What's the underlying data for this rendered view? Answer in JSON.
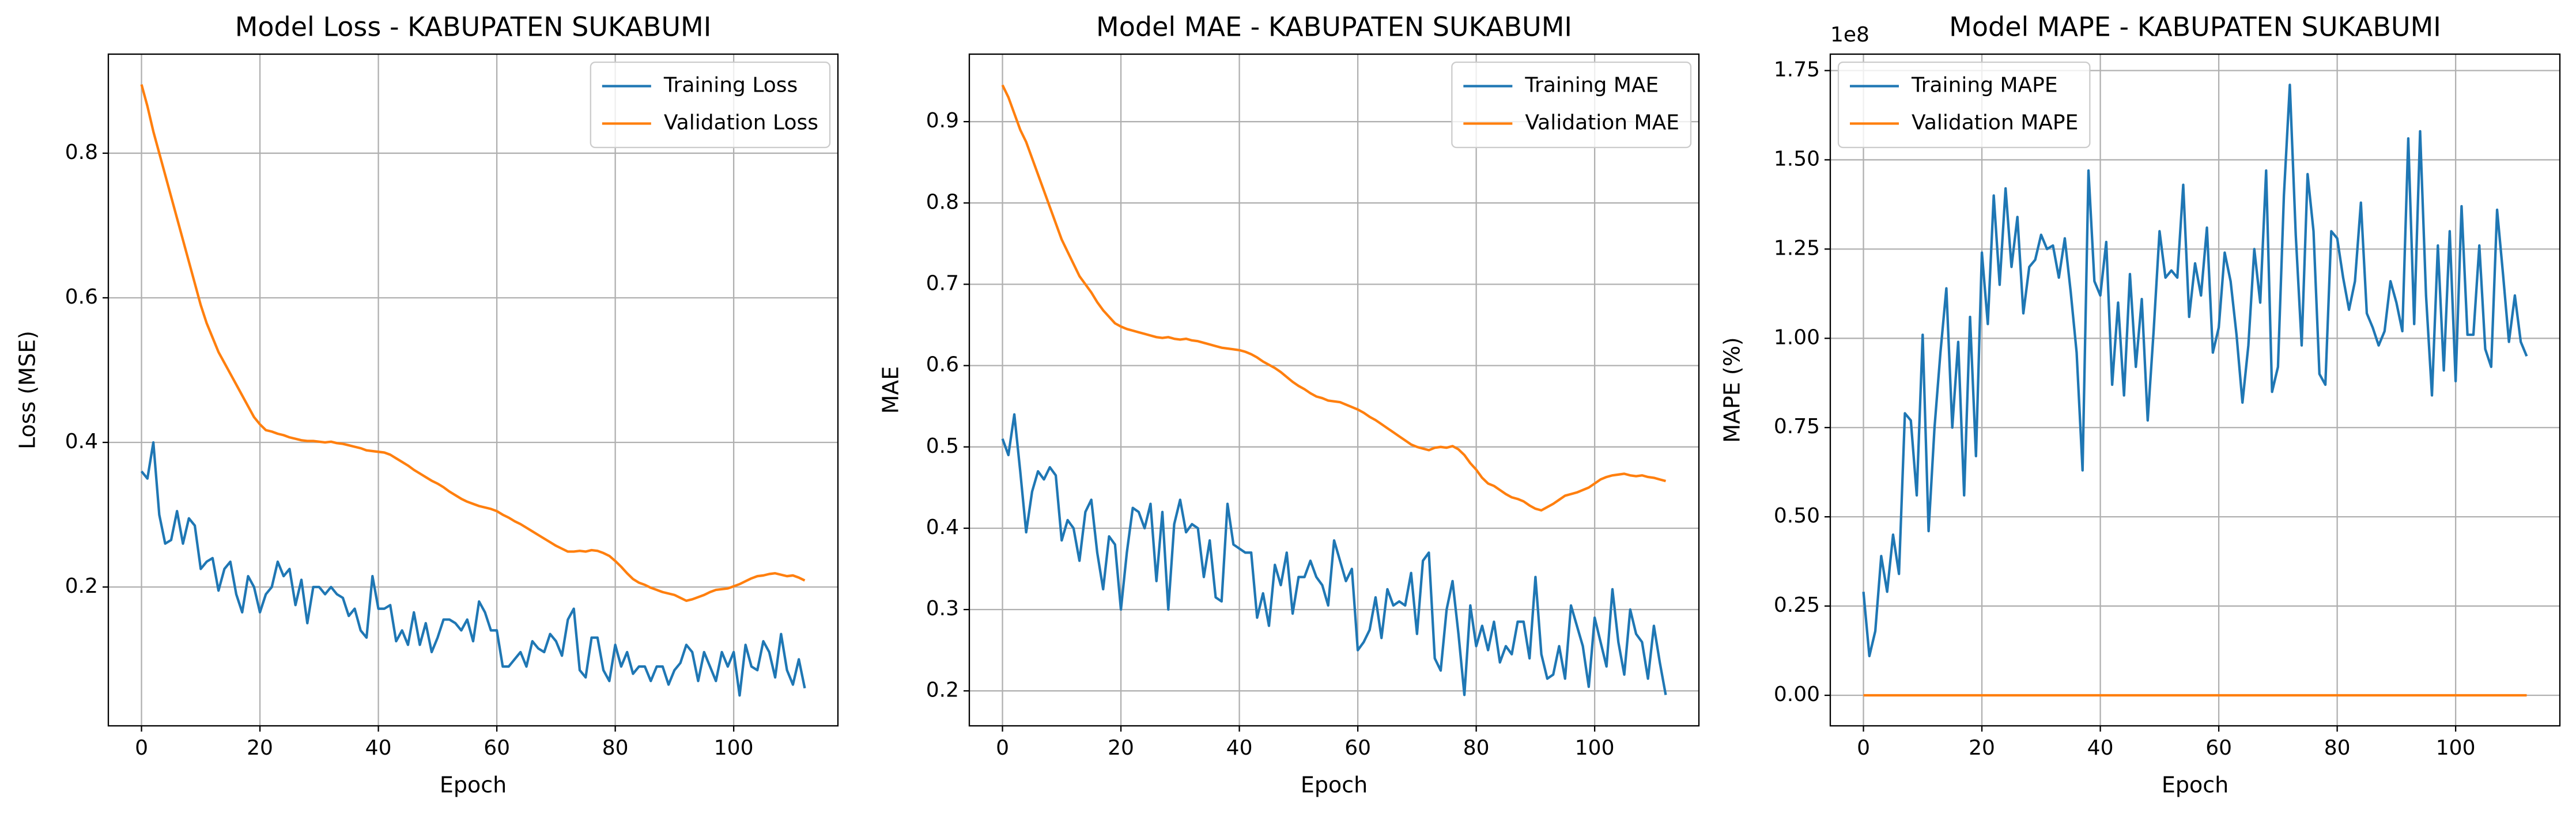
{
  "chart_data": [
    {
      "type": "line",
      "title": "Model Loss - KABUPATEN SUKABUMI",
      "xlabel": "Epoch",
      "ylabel": "Loss (MSE)",
      "x": [
        0,
        1,
        2,
        3,
        4,
        5,
        6,
        7,
        8,
        9,
        10,
        11,
        12,
        13,
        14,
        15,
        16,
        17,
        18,
        19,
        20,
        21,
        22,
        23,
        24,
        25,
        26,
        27,
        28,
        29,
        30,
        31,
        32,
        33,
        34,
        35,
        36,
        37,
        38,
        39,
        40,
        41,
        42,
        43,
        44,
        45,
        46,
        47,
        48,
        49,
        50,
        51,
        52,
        53,
        54,
        55,
        56,
        57,
        58,
        59,
        60,
        61,
        62,
        63,
        64,
        65,
        66,
        67,
        68,
        69,
        70,
        71,
        72,
        73,
        74,
        75,
        76,
        77,
        78,
        79,
        80,
        81,
        82,
        83,
        84,
        85,
        86,
        87,
        88,
        89,
        90,
        91,
        92,
        93,
        94,
        95,
        96,
        97,
        98,
        99,
        100,
        101,
        102,
        103,
        104,
        105,
        106,
        107,
        108,
        109,
        110,
        111,
        112
      ],
      "series": [
        {
          "name": "Training Loss",
          "color": "#1f77b4",
          "values": [
            0.36,
            0.35,
            0.4,
            0.3,
            0.26,
            0.265,
            0.305,
            0.26,
            0.295,
            0.285,
            0.225,
            0.235,
            0.24,
            0.195,
            0.225,
            0.235,
            0.19,
            0.165,
            0.215,
            0.2,
            0.165,
            0.19,
            0.2,
            0.235,
            0.215,
            0.225,
            0.175,
            0.21,
            0.15,
            0.2,
            0.2,
            0.19,
            0.2,
            0.19,
            0.185,
            0.16,
            0.17,
            0.14,
            0.13,
            0.215,
            0.17,
            0.17,
            0.175,
            0.125,
            0.14,
            0.12,
            0.165,
            0.12,
            0.15,
            0.11,
            0.13,
            0.155,
            0.155,
            0.15,
            0.14,
            0.155,
            0.125,
            0.18,
            0.165,
            0.14,
            0.14,
            0.09,
            0.09,
            0.1,
            0.11,
            0.09,
            0.125,
            0.115,
            0.11,
            0.135,
            0.125,
            0.105,
            0.155,
            0.17,
            0.085,
            0.075,
            0.13,
            0.13,
            0.085,
            0.07,
            0.12,
            0.09,
            0.11,
            0.08,
            0.09,
            0.09,
            0.07,
            0.09,
            0.09,
            0.065,
            0.085,
            0.095,
            0.12,
            0.11,
            0.07,
            0.11,
            0.09,
            0.07,
            0.11,
            0.09,
            0.11,
            0.05,
            0.12,
            0.09,
            0.085,
            0.125,
            0.11,
            0.075,
            0.135,
            0.085,
            0.065,
            0.1,
            0.06
          ]
        },
        {
          "name": "Validation Loss",
          "color": "#ff7f0e",
          "values": [
            0.895,
            0.865,
            0.83,
            0.8,
            0.77,
            0.74,
            0.71,
            0.68,
            0.65,
            0.62,
            0.59,
            0.565,
            0.545,
            0.525,
            0.51,
            0.495,
            0.48,
            0.465,
            0.45,
            0.435,
            0.425,
            0.417,
            0.415,
            0.412,
            0.41,
            0.407,
            0.405,
            0.403,
            0.402,
            0.402,
            0.401,
            0.4,
            0.401,
            0.399,
            0.398,
            0.396,
            0.394,
            0.392,
            0.389,
            0.388,
            0.387,
            0.386,
            0.383,
            0.378,
            0.373,
            0.368,
            0.362,
            0.357,
            0.352,
            0.347,
            0.343,
            0.338,
            0.332,
            0.327,
            0.322,
            0.318,
            0.315,
            0.312,
            0.31,
            0.308,
            0.305,
            0.3,
            0.296,
            0.291,
            0.287,
            0.282,
            0.277,
            0.272,
            0.267,
            0.262,
            0.257,
            0.253,
            0.249,
            0.249,
            0.25,
            0.249,
            0.251,
            0.25,
            0.247,
            0.243,
            0.236,
            0.228,
            0.219,
            0.211,
            0.206,
            0.203,
            0.199,
            0.196,
            0.193,
            0.191,
            0.189,
            0.185,
            0.181,
            0.183,
            0.186,
            0.189,
            0.193,
            0.196,
            0.197,
            0.198,
            0.201,
            0.204,
            0.208,
            0.212,
            0.215,
            0.216,
            0.218,
            0.219,
            0.217,
            0.215,
            0.216,
            0.213,
            0.209
          ]
        }
      ],
      "xlim": [
        -5.6,
        117.6
      ],
      "xticks": [
        0,
        20,
        40,
        60,
        80,
        100
      ],
      "ylim": [
        0.008,
        0.937
      ],
      "yticks": [
        0.2,
        0.4,
        0.6,
        0.8
      ],
      "grid": true,
      "legend": "upper right"
    },
    {
      "type": "line",
      "title": "Model MAE - KABUPATEN SUKABUMI",
      "xlabel": "Epoch",
      "ylabel": "MAE",
      "x": [
        0,
        1,
        2,
        3,
        4,
        5,
        6,
        7,
        8,
        9,
        10,
        11,
        12,
        13,
        14,
        15,
        16,
        17,
        18,
        19,
        20,
        21,
        22,
        23,
        24,
        25,
        26,
        27,
        28,
        29,
        30,
        31,
        32,
        33,
        34,
        35,
        36,
        37,
        38,
        39,
        40,
        41,
        42,
        43,
        44,
        45,
        46,
        47,
        48,
        49,
        50,
        51,
        52,
        53,
        54,
        55,
        56,
        57,
        58,
        59,
        60,
        61,
        62,
        63,
        64,
        65,
        66,
        67,
        68,
        69,
        70,
        71,
        72,
        73,
        74,
        75,
        76,
        77,
        78,
        79,
        80,
        81,
        82,
        83,
        84,
        85,
        86,
        87,
        88,
        89,
        90,
        91,
        92,
        93,
        94,
        95,
        96,
        97,
        98,
        99,
        100,
        101,
        102,
        103,
        104,
        105,
        106,
        107,
        108,
        109,
        110,
        111,
        112
      ],
      "series": [
        {
          "name": "Training MAE",
          "color": "#1f77b4",
          "values": [
            0.51,
            0.49,
            0.54,
            0.47,
            0.395,
            0.445,
            0.47,
            0.46,
            0.475,
            0.465,
            0.385,
            0.41,
            0.4,
            0.36,
            0.42,
            0.435,
            0.37,
            0.325,
            0.39,
            0.38,
            0.3,
            0.37,
            0.425,
            0.42,
            0.4,
            0.43,
            0.335,
            0.42,
            0.3,
            0.405,
            0.435,
            0.395,
            0.405,
            0.4,
            0.34,
            0.385,
            0.315,
            0.31,
            0.43,
            0.38,
            0.375,
            0.37,
            0.37,
            0.29,
            0.32,
            0.28,
            0.355,
            0.33,
            0.37,
            0.295,
            0.34,
            0.34,
            0.36,
            0.34,
            0.33,
            0.305,
            0.385,
            0.36,
            0.335,
            0.35,
            0.25,
            0.26,
            0.275,
            0.315,
            0.265,
            0.325,
            0.305,
            0.31,
            0.305,
            0.345,
            0.27,
            0.36,
            0.37,
            0.24,
            0.225,
            0.3,
            0.335,
            0.27,
            0.195,
            0.305,
            0.255,
            0.28,
            0.25,
            0.285,
            0.235,
            0.255,
            0.245,
            0.285,
            0.285,
            0.24,
            0.34,
            0.245,
            0.215,
            0.22,
            0.255,
            0.215,
            0.305,
            0.28,
            0.255,
            0.205,
            0.29,
            0.26,
            0.23,
            0.325,
            0.26,
            0.22,
            0.3,
            0.27,
            0.26,
            0.215,
            0.28,
            0.235,
            0.195
          ]
        },
        {
          "name": "Validation MAE",
          "color": "#ff7f0e",
          "values": [
            0.945,
            0.93,
            0.91,
            0.89,
            0.875,
            0.855,
            0.835,
            0.815,
            0.795,
            0.775,
            0.755,
            0.74,
            0.725,
            0.71,
            0.7,
            0.69,
            0.678,
            0.668,
            0.66,
            0.652,
            0.648,
            0.645,
            0.643,
            0.641,
            0.639,
            0.637,
            0.635,
            0.634,
            0.635,
            0.633,
            0.632,
            0.633,
            0.631,
            0.63,
            0.628,
            0.626,
            0.624,
            0.622,
            0.621,
            0.62,
            0.619,
            0.617,
            0.614,
            0.61,
            0.605,
            0.601,
            0.597,
            0.592,
            0.586,
            0.58,
            0.575,
            0.571,
            0.566,
            0.562,
            0.56,
            0.557,
            0.556,
            0.555,
            0.552,
            0.549,
            0.546,
            0.542,
            0.537,
            0.533,
            0.528,
            0.523,
            0.518,
            0.513,
            0.508,
            0.503,
            0.5,
            0.498,
            0.496,
            0.499,
            0.5,
            0.499,
            0.501,
            0.497,
            0.49,
            0.48,
            0.472,
            0.462,
            0.455,
            0.452,
            0.447,
            0.442,
            0.438,
            0.436,
            0.433,
            0.428,
            0.424,
            0.422,
            0.426,
            0.43,
            0.435,
            0.44,
            0.442,
            0.444,
            0.447,
            0.45,
            0.455,
            0.46,
            0.463,
            0.465,
            0.466,
            0.467,
            0.465,
            0.464,
            0.465,
            0.463,
            0.462,
            0.46,
            0.458
          ]
        }
      ],
      "xlim": [
        -5.6,
        117.6
      ],
      "xticks": [
        0,
        20,
        40,
        60,
        80,
        100
      ],
      "ylim": [
        0.157,
        0.983
      ],
      "yticks": [
        0.2,
        0.3,
        0.4,
        0.5,
        0.6,
        0.7,
        0.8,
        0.9
      ],
      "grid": true,
      "legend": "upper right"
    },
    {
      "type": "line",
      "title": "Model MAPE - KABUPATEN SUKABUMI",
      "xlabel": "Epoch",
      "ylabel": "MAPE (%)",
      "y_offset_label": "1e8",
      "x": [
        0,
        1,
        2,
        3,
        4,
        5,
        6,
        7,
        8,
        9,
        10,
        11,
        12,
        13,
        14,
        15,
        16,
        17,
        18,
        19,
        20,
        21,
        22,
        23,
        24,
        25,
        26,
        27,
        28,
        29,
        30,
        31,
        32,
        33,
        34,
        35,
        36,
        37,
        38,
        39,
        40,
        41,
        42,
        43,
        44,
        45,
        46,
        47,
        48,
        49,
        50,
        51,
        52,
        53,
        54,
        55,
        56,
        57,
        58,
        59,
        60,
        61,
        62,
        63,
        64,
        65,
        66,
        67,
        68,
        69,
        70,
        71,
        72,
        73,
        74,
        75,
        76,
        77,
        78,
        79,
        80,
        81,
        82,
        83,
        84,
        85,
        86,
        87,
        88,
        89,
        90,
        91,
        92,
        93,
        94,
        95,
        96,
        97,
        98,
        99,
        100,
        101,
        102,
        103,
        104,
        105,
        106,
        107,
        108,
        109,
        110,
        111,
        112
      ],
      "series": [
        {
          "name": "Training MAPE",
          "color": "#1f77b4",
          "values": [
            0.29,
            0.11,
            0.18,
            0.39,
            0.29,
            0.45,
            0.34,
            0.79,
            0.77,
            0.56,
            1.01,
            0.46,
            0.75,
            0.96,
            1.14,
            0.75,
            0.99,
            0.56,
            1.06,
            0.67,
            1.24,
            1.04,
            1.4,
            1.15,
            1.42,
            1.2,
            1.34,
            1.07,
            1.2,
            1.22,
            1.29,
            1.25,
            1.26,
            1.17,
            1.28,
            1.13,
            0.96,
            0.63,
            1.47,
            1.16,
            1.12,
            1.27,
            0.87,
            1.1,
            0.84,
            1.18,
            0.92,
            1.11,
            0.77,
            1.02,
            1.3,
            1.17,
            1.19,
            1.17,
            1.43,
            1.06,
            1.21,
            1.12,
            1.31,
            0.96,
            1.03,
            1.24,
            1.16,
            1.01,
            0.82,
            0.98,
            1.25,
            1.1,
            1.47,
            0.85,
            0.92,
            1.4,
            1.71,
            1.29,
            0.98,
            1.46,
            1.3,
            0.9,
            0.87,
            1.3,
            1.28,
            1.17,
            1.08,
            1.16,
            1.38,
            1.07,
            1.03,
            0.98,
            1.02,
            1.16,
            1.1,
            1.02,
            1.56,
            1.04,
            1.58,
            1.12,
            0.84,
            1.26,
            0.91,
            1.3,
            0.88,
            1.37,
            1.01,
            1.01,
            1.26,
            0.97,
            0.92,
            1.36,
            1.18,
            0.99,
            1.12,
            0.99,
            0.95
          ]
        },
        {
          "name": "Validation MAPE",
          "color": "#ff7f0e",
          "values": [
            0,
            0,
            0,
            0,
            0,
            0,
            0,
            0,
            0,
            0,
            0,
            0,
            0,
            0,
            0,
            0,
            0,
            0,
            0,
            0,
            0,
            0,
            0,
            0,
            0,
            0,
            0,
            0,
            0,
            0,
            0,
            0,
            0,
            0,
            0,
            0,
            0,
            0,
            0,
            0,
            0,
            0,
            0,
            0,
            0,
            0,
            0,
            0,
            0,
            0,
            0,
            0,
            0,
            0,
            0,
            0,
            0,
            0,
            0,
            0,
            0,
            0,
            0,
            0,
            0,
            0,
            0,
            0,
            0,
            0,
            0,
            0,
            0,
            0,
            0,
            0,
            0,
            0,
            0,
            0,
            0,
            0,
            0,
            0,
            0,
            0,
            0,
            0,
            0,
            0,
            0,
            0,
            0,
            0,
            0,
            0,
            0,
            0,
            0,
            0,
            0,
            0,
            0,
            0,
            0,
            0,
            0,
            0,
            0,
            0,
            0,
            0,
            0
          ]
        }
      ],
      "xlim": [
        -5.6,
        117.6
      ],
      "xticks": [
        0,
        20,
        40,
        60,
        80,
        100
      ],
      "ylim": [
        -0.0855,
        1.796
      ],
      "yticks": [
        {
          "value": 0,
          "label": "0.00"
        },
        0.25,
        {
          "value": 0.5,
          "label": "0.50"
        },
        0.75,
        {
          "value": 1,
          "label": "1.00"
        },
        1.25,
        {
          "value": 1.5,
          "label": "1.50"
        },
        1.75
      ],
      "grid": true,
      "legend": "upper left"
    }
  ]
}
